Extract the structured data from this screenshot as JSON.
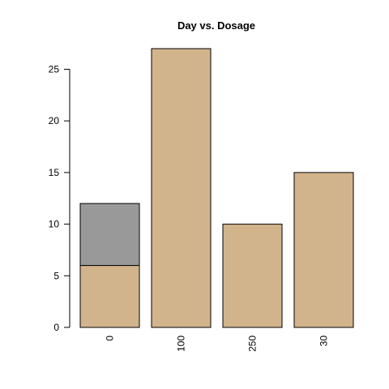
{
  "chart_data": {
    "type": "bar",
    "stacked": true,
    "title": "Day vs. Dosage",
    "xlabel": "",
    "ylabel": "",
    "categories": [
      "0",
      "100",
      "250",
      "30"
    ],
    "series": [
      {
        "values": [
          6,
          27,
          10,
          15
        ],
        "color": "#D2B48C"
      },
      {
        "values": [
          6,
          0,
          0,
          0
        ],
        "color": "#999999"
      }
    ],
    "ylim": [
      0,
      27
    ],
    "yticks": [
      0,
      5,
      10,
      15,
      20,
      25
    ],
    "grid": false,
    "legend": "none"
  }
}
